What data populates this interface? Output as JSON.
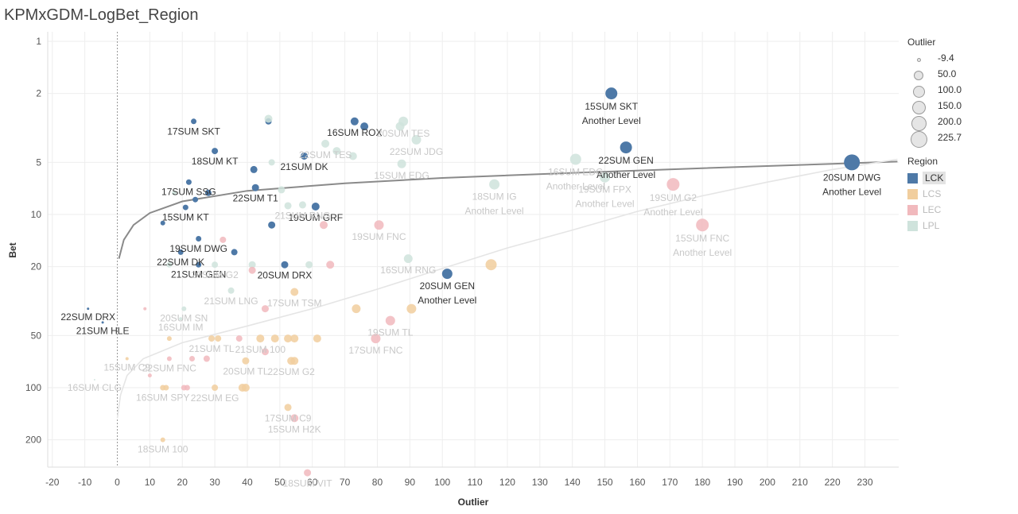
{
  "chart_data": {
    "type": "scatter",
    "title": "KPMxGDM-LogBet_Region",
    "xlabel": "Outlier",
    "ylabel": "Bet",
    "xlim": [
      -22,
      240
    ],
    "ylim": [
      400,
      0.8
    ],
    "y_scale": "log",
    "x_ticks": [
      -20,
      -10,
      0,
      10,
      20,
      30,
      40,
      50,
      60,
      70,
      80,
      90,
      100,
      110,
      120,
      130,
      140,
      150,
      160,
      170,
      180,
      190,
      200,
      210,
      220,
      230
    ],
    "y_ticks": [
      1,
      2,
      5,
      10,
      20,
      50,
      100,
      200
    ],
    "grid": true,
    "legend_position": "right",
    "highlighted_region": "LCK",
    "colors": {
      "LCK": "#4e79a7",
      "LCS": "#f1ce9e",
      "LEC": "#f1b9bd",
      "LPL": "#cfe3dc",
      "label_dim": "#c8c8c8",
      "line": "#8a8a8a",
      "line_light": "#e5e5e5"
    },
    "lines": [
      {
        "name": "",
        "color_key": "line",
        "points": [
          [
            0.5,
            18
          ],
          [
            2,
            14
          ],
          [
            5,
            11.5
          ],
          [
            10,
            9.8
          ],
          [
            20,
            8.4
          ],
          [
            40,
            7.3
          ],
          [
            70,
            6.6
          ],
          [
            100,
            6.15
          ],
          [
            140,
            5.75
          ],
          [
            180,
            5.4
          ],
          [
            220,
            5.1
          ],
          [
            240,
            4.95
          ]
        ]
      },
      {
        "name": "",
        "color_key": "line_light",
        "points": [
          [
            0,
            150
          ],
          [
            1,
            110
          ],
          [
            3,
            85
          ],
          [
            8,
            68
          ],
          [
            20,
            55
          ],
          [
            40,
            44
          ],
          [
            60,
            35
          ],
          [
            80,
            27
          ],
          [
            100,
            20.5
          ],
          [
            120,
            15.6
          ],
          [
            140,
            12.3
          ],
          [
            160,
            9.6
          ],
          [
            180,
            7.8
          ],
          [
            200,
            6.5
          ],
          [
            220,
            5.5
          ],
          [
            240,
            4.8
          ]
        ]
      }
    ],
    "points": [
      {
        "x": 152,
        "y": 2,
        "r": 7.5,
        "region": "LCK",
        "label": "15SUM SKT",
        "sub": "Another Level"
      },
      {
        "x": 156.5,
        "y": 4.1,
        "r": 7.5,
        "region": "LCK",
        "label": "22SUM GEN",
        "sub": "Another Level"
      },
      {
        "x": 226,
        "y": 5,
        "r": 10,
        "region": "LCK",
        "label": "20SUM DWG",
        "sub": "Another Level"
      },
      {
        "x": 101.5,
        "y": 22,
        "r": 6.5,
        "region": "LCK",
        "label": "20SUM GEN",
        "sub": "Another Level"
      },
      {
        "x": 73,
        "y": 2.9,
        "r": 5,
        "region": "LCK",
        "label": "16SUM ROX"
      },
      {
        "x": 76,
        "y": 3.1,
        "r": 5,
        "region": "LCK"
      },
      {
        "x": 46.5,
        "y": 2.9,
        "r": 4,
        "region": "LCK"
      },
      {
        "x": 23.5,
        "y": 2.9,
        "r": 3.5,
        "region": "LCK",
        "label": "17SUM SKT"
      },
      {
        "x": 30,
        "y": 4.3,
        "r": 4,
        "region": "LCK",
        "label": "18SUM KT"
      },
      {
        "x": 57.5,
        "y": 4.6,
        "r": 4.5,
        "region": "LCK",
        "label": "21SUM DK"
      },
      {
        "x": 42,
        "y": 5.5,
        "r": 4.5,
        "region": "LCK"
      },
      {
        "x": 22,
        "y": 6.5,
        "r": 3.5,
        "region": "LCK",
        "label": "17SUM SSG"
      },
      {
        "x": 28,
        "y": 7.5,
        "r": 4,
        "region": "LCK"
      },
      {
        "x": 42.5,
        "y": 7,
        "r": 4.5,
        "region": "LCK",
        "label": "22SUM T1"
      },
      {
        "x": 24,
        "y": 8.2,
        "r": 3.5,
        "region": "LCK"
      },
      {
        "x": 61,
        "y": 9,
        "r": 5,
        "region": "LCK",
        "label": "19SUM GRF"
      },
      {
        "x": 21,
        "y": 9.1,
        "r": 3.5,
        "region": "LCK",
        "label": "15SUM KT"
      },
      {
        "x": 47.5,
        "y": 11.5,
        "r": 4.5,
        "region": "LCK"
      },
      {
        "x": 14,
        "y": 11.2,
        "r": 3,
        "region": "LCK"
      },
      {
        "x": 25,
        "y": 13.8,
        "r": 3.5,
        "region": "LCK",
        "label": "19SUM DWG"
      },
      {
        "x": 19.5,
        "y": 16.5,
        "r": 3.5,
        "region": "LCK",
        "label": "22SUM DK"
      },
      {
        "x": 36,
        "y": 16.5,
        "r": 4,
        "region": "LCK"
      },
      {
        "x": 25,
        "y": 19.5,
        "r": 3.5,
        "region": "LCK",
        "label": "21SUM GEN"
      },
      {
        "x": 51.5,
        "y": 19.5,
        "r": 4.5,
        "region": "LCK",
        "label": "20SUM DRX"
      },
      {
        "x": -9,
        "y": 35,
        "r": 1.5,
        "region": "LCK",
        "label": "22SUM DRX"
      },
      {
        "x": -4.5,
        "y": 42,
        "r": 1.5,
        "region": "LCK",
        "label": "21SUM HLE"
      },
      {
        "x": 46.5,
        "y": 2.8,
        "r": 5,
        "region": "LPL"
      },
      {
        "x": 88,
        "y": 2.9,
        "r": 6,
        "region": "LPL",
        "label": "20SUM TES"
      },
      {
        "x": 87,
        "y": 3.1,
        "r": 5.5,
        "region": "LPL"
      },
      {
        "x": 92,
        "y": 3.7,
        "r": 6,
        "region": "LPL",
        "label": "22SUM JDG"
      },
      {
        "x": 64,
        "y": 3.9,
        "r": 5,
        "region": "LPL",
        "label": "22SUM TES"
      },
      {
        "x": 67.5,
        "y": 4.3,
        "r": 5,
        "region": "LPL"
      },
      {
        "x": 72.5,
        "y": 4.6,
        "r": 5,
        "region": "LPL"
      },
      {
        "x": 87.5,
        "y": 5.1,
        "r": 5.5,
        "region": "LPL",
        "label": "15SUM EDG"
      },
      {
        "x": 141,
        "y": 4.8,
        "r": 7,
        "region": "LPL",
        "label": "16SUM EDG",
        "sub": "Another Level"
      },
      {
        "x": 150,
        "y": 6.1,
        "r": 6.5,
        "region": "LPL",
        "label": "19SUM FPX",
        "sub": "Another Level"
      },
      {
        "x": 116,
        "y": 6.7,
        "r": 6.5,
        "region": "LPL",
        "label": "18SUM IG",
        "sub": "Another Level"
      },
      {
        "x": 47.5,
        "y": 5,
        "r": 4,
        "region": "LPL"
      },
      {
        "x": 50.5,
        "y": 7.2,
        "r": 4.5,
        "region": "LPL"
      },
      {
        "x": 17.5,
        "y": 7.5,
        "r": 3,
        "region": "LPL"
      },
      {
        "x": 57,
        "y": 8.8,
        "r": 4.5,
        "region": "LPL",
        "label": "21SUM RNG"
      },
      {
        "x": 52.5,
        "y": 8.9,
        "r": 4.5,
        "region": "LPL"
      },
      {
        "x": 30,
        "y": 19.5,
        "r": 4,
        "region": "LPL",
        "label": "20SUM G2"
      },
      {
        "x": 41.5,
        "y": 19.5,
        "r": 4.5,
        "region": "LPL"
      },
      {
        "x": 59,
        "y": 19.5,
        "r": 4.5,
        "region": "LPL"
      },
      {
        "x": 16,
        "y": 19.5,
        "r": 3.5,
        "region": "LPL"
      },
      {
        "x": 89.5,
        "y": 18,
        "r": 5.5,
        "region": "LPL",
        "label": "16SUM RNG"
      },
      {
        "x": 35,
        "y": 27.5,
        "r": 4,
        "region": "LPL",
        "label": "21SUM LNG"
      },
      {
        "x": 20.5,
        "y": 35,
        "r": 3,
        "region": "LPL",
        "label": "20SUM SN"
      },
      {
        "x": 19.5,
        "y": 40,
        "r": 2,
        "region": "LPL",
        "label": "16SUM IM"
      },
      {
        "x": -7,
        "y": 90,
        "r": 1,
        "region": "LPL",
        "label": "16SUM CLG"
      },
      {
        "x": 115,
        "y": 19.5,
        "r": 7,
        "region": "LCS"
      },
      {
        "x": 90.5,
        "y": 35,
        "r": 6,
        "region": "LCS"
      },
      {
        "x": 73.5,
        "y": 35,
        "r": 5.5,
        "region": "LCS"
      },
      {
        "x": 54.5,
        "y": 28,
        "r": 5,
        "region": "LCS",
        "label": "17SUM TSM"
      },
      {
        "x": 44,
        "y": 52,
        "r": 5,
        "region": "LCS",
        "label": "21SUM 100"
      },
      {
        "x": 48.5,
        "y": 52,
        "r": 5,
        "region": "LCS"
      },
      {
        "x": 52.5,
        "y": 52,
        "r": 5,
        "region": "LCS"
      },
      {
        "x": 54.5,
        "y": 52,
        "r": 5,
        "region": "LCS"
      },
      {
        "x": 61.5,
        "y": 52,
        "r": 5,
        "region": "LCS"
      },
      {
        "x": 29,
        "y": 52,
        "r": 4,
        "region": "LCS",
        "label": "21SUM TL"
      },
      {
        "x": 31,
        "y": 52,
        "r": 4,
        "region": "LCS"
      },
      {
        "x": 16,
        "y": 52,
        "r": 3,
        "region": "LCS"
      },
      {
        "x": 39.5,
        "y": 70,
        "r": 4.5,
        "region": "LCS",
        "label": "20SUM TL"
      },
      {
        "x": 53.5,
        "y": 70,
        "r": 5,
        "region": "LCS",
        "label": "22SUM G2"
      },
      {
        "x": 54.5,
        "y": 70,
        "r": 5,
        "region": "LCS"
      },
      {
        "x": 14,
        "y": 100,
        "r": 3.5,
        "region": "LCS",
        "label": "16SUM SPY"
      },
      {
        "x": 15,
        "y": 100,
        "r": 3.5,
        "region": "LCS"
      },
      {
        "x": 30,
        "y": 100,
        "r": 4,
        "region": "LCS",
        "label": "22SUM EG"
      },
      {
        "x": 38.5,
        "y": 100,
        "r": 5,
        "region": "LCS"
      },
      {
        "x": 39.5,
        "y": 100,
        "r": 5,
        "region": "LCS"
      },
      {
        "x": 52.5,
        "y": 130,
        "r": 4.5,
        "region": "LCS",
        "label": "17SUM C9"
      },
      {
        "x": 14,
        "y": 200,
        "r": 3,
        "region": "LCS",
        "label": "18SUM 100"
      },
      {
        "x": 3,
        "y": 68,
        "r": 2,
        "region": "LCS",
        "label": "15SUM C9"
      },
      {
        "x": 80.5,
        "y": 11.5,
        "r": 6,
        "region": "LEC",
        "label": "19SUM FNC"
      },
      {
        "x": 171,
        "y": 6.7,
        "r": 8,
        "region": "LEC",
        "label": "19SUM G2",
        "sub": "Another Level"
      },
      {
        "x": 180,
        "y": 11.5,
        "r": 8,
        "region": "LEC",
        "label": "15SUM FNC",
        "sub": "Another Level"
      },
      {
        "x": 84,
        "y": 41,
        "r": 6,
        "region": "LEC",
        "label": "19SUM TL"
      },
      {
        "x": 79.5,
        "y": 52,
        "r": 6,
        "region": "LEC",
        "label": "17SUM FNC"
      },
      {
        "x": 65.5,
        "y": 19.5,
        "r": 5,
        "region": "LEC"
      },
      {
        "x": 63.5,
        "y": 11.5,
        "r": 5,
        "region": "LEC"
      },
      {
        "x": 32.5,
        "y": 14,
        "r": 4,
        "region": "LEC"
      },
      {
        "x": 41.5,
        "y": 21,
        "r": 4.5,
        "region": "LEC"
      },
      {
        "x": 45.5,
        "y": 35,
        "r": 4.5,
        "region": "LEC"
      },
      {
        "x": 45.5,
        "y": 62,
        "r": 4.5,
        "region": "LEC"
      },
      {
        "x": 16,
        "y": 68,
        "r": 3,
        "region": "LEC",
        "label": "22SUM FNC"
      },
      {
        "x": 23,
        "y": 68,
        "r": 3.5,
        "region": "LEC"
      },
      {
        "x": 27.5,
        "y": 68,
        "r": 4,
        "region": "LEC"
      },
      {
        "x": 37.5,
        "y": 52,
        "r": 4,
        "region": "LEC"
      },
      {
        "x": 10,
        "y": 85,
        "r": 2.5,
        "region": "LEC"
      },
      {
        "x": 20.5,
        "y": 100,
        "r": 3.5,
        "region": "LEC"
      },
      {
        "x": 21.5,
        "y": 100,
        "r": 3.5,
        "region": "LEC"
      },
      {
        "x": 54.5,
        "y": 150,
        "r": 5,
        "region": "LEC",
        "label": "15SUM H2K"
      },
      {
        "x": 58.5,
        "y": 310,
        "r": 4.5,
        "region": "LEC",
        "label": "18SUM VIT"
      },
      {
        "x": 8.5,
        "y": 35,
        "r": 2,
        "region": "LEC"
      }
    ]
  },
  "legend": {
    "size_title": "Outlier",
    "size_items": [
      {
        "label": "-9.4",
        "r": 1.5
      },
      {
        "label": "50.0",
        "r": 5
      },
      {
        "label": "100.0",
        "r": 6.5
      },
      {
        "label": "150.0",
        "r": 7.5
      },
      {
        "label": "200.0",
        "r": 8.5
      },
      {
        "label": "225.7",
        "r": 9.5
      }
    ],
    "region_title": "Region",
    "region_items": [
      {
        "label": "LCK",
        "color": "#4e79a7",
        "active": true
      },
      {
        "label": "LCS",
        "color": "#f1ce9e",
        "active": false
      },
      {
        "label": "LEC",
        "color": "#f1b9bd",
        "active": false
      },
      {
        "label": "LPL",
        "color": "#cfe3dc",
        "active": false
      }
    ]
  }
}
